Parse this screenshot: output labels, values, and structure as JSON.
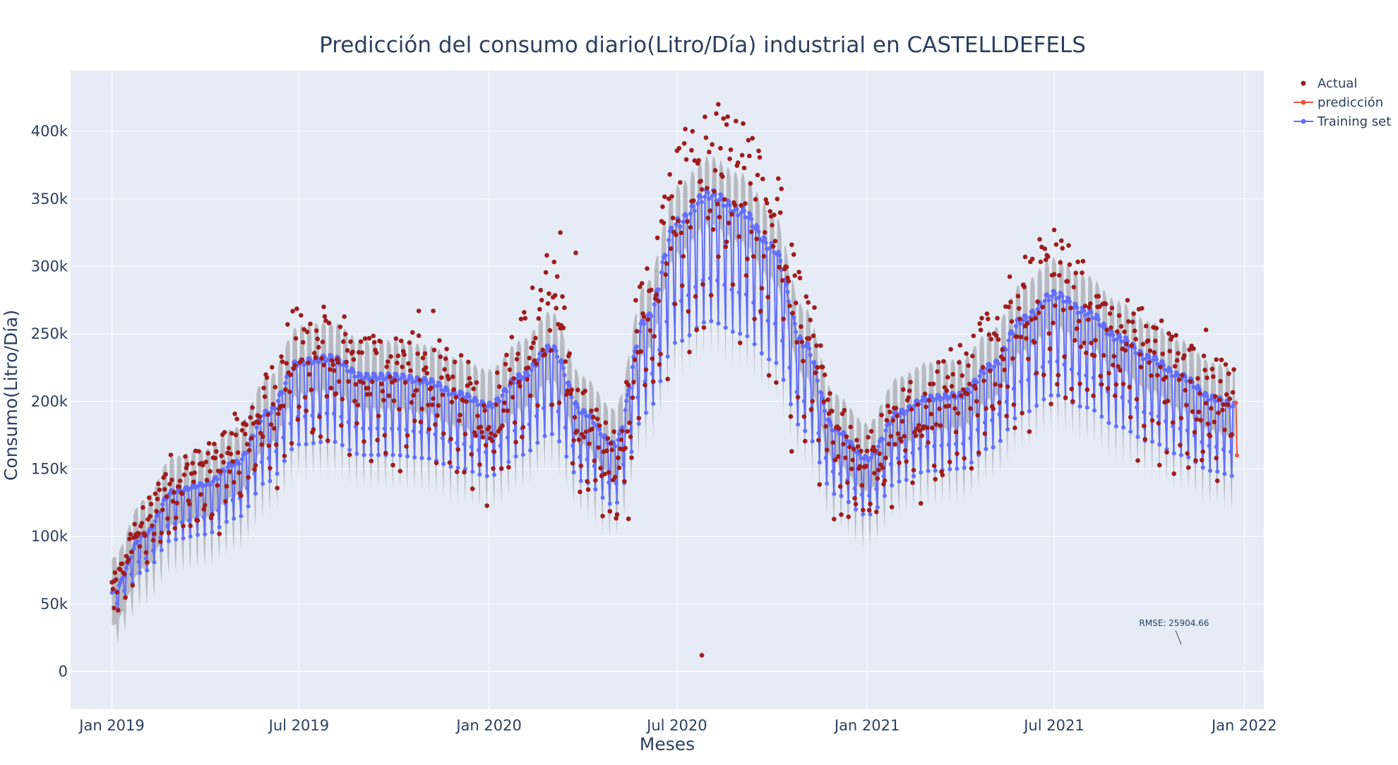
{
  "chart_data": {
    "type": "scatter",
    "title": "Predicción del consumo diario(Litro/Día) industrial en CASTELLDEFELS",
    "xlabel": "Meses",
    "ylabel": "Consumo(Litro/Día)",
    "x_range": [
      "2018-11-22",
      "2022-01-20"
    ],
    "ylim": [
      -28000,
      445000
    ],
    "x_ticks": [
      {
        "date": "2019-01-01",
        "label": "Jan 2019"
      },
      {
        "date": "2019-07-01",
        "label": "Jul 2019"
      },
      {
        "date": "2020-01-01",
        "label": "Jan 2020"
      },
      {
        "date": "2020-07-01",
        "label": "Jul 2020"
      },
      {
        "date": "2021-01-01",
        "label": "Jan 2021"
      },
      {
        "date": "2021-07-01",
        "label": "Jul 2021"
      },
      {
        "date": "2022-01-01",
        "label": "Jan 2022"
      }
    ],
    "y_ticks": [
      {
        "value": 0,
        "label": "0"
      },
      {
        "value": 50000,
        "label": "50k"
      },
      {
        "value": 100000,
        "label": "100k"
      },
      {
        "value": 150000,
        "label": "150k"
      },
      {
        "value": 200000,
        "label": "200k"
      },
      {
        "value": 250000,
        "label": "250k"
      },
      {
        "value": 300000,
        "label": "300k"
      },
      {
        "value": 350000,
        "label": "350k"
      },
      {
        "value": 400000,
        "label": "400k"
      }
    ],
    "grid": true,
    "legend_position": "top-right",
    "colors": {
      "plot_bg": "#e5ecf6",
      "grid": "#ffffff",
      "actual": "#a01c1c",
      "prediction": "#ef553b",
      "training": "#636efa",
      "band": "#7f7f7f"
    },
    "series": [
      {
        "name": "Actual",
        "mode": "markers",
        "anchors": [
          [
            "2019-01-01",
            60000
          ],
          [
            "2019-02-01",
            105000
          ],
          [
            "2019-03-01",
            135000
          ],
          [
            "2019-04-01",
            140000
          ],
          [
            "2019-05-01",
            160000
          ],
          [
            "2019-06-01",
            190000
          ],
          [
            "2019-07-01",
            228000
          ],
          [
            "2019-08-01",
            222000
          ],
          [
            "2019-09-01",
            212000
          ],
          [
            "2019-10-01",
            215000
          ],
          [
            "2019-11-01",
            210000
          ],
          [
            "2019-12-01",
            195000
          ],
          [
            "2020-01-01",
            180000
          ],
          [
            "2020-02-01",
            225000
          ],
          [
            "2020-03-01",
            265000
          ],
          [
            "2020-04-01",
            175000
          ],
          [
            "2020-05-01",
            150000
          ],
          [
            "2020-06-01",
            255000
          ],
          [
            "2020-07-01",
            330000
          ],
          [
            "2020-08-01",
            350000
          ],
          [
            "2020-09-01",
            340000
          ],
          [
            "2020-10-01",
            320000
          ],
          [
            "2020-11-01",
            245000
          ],
          [
            "2020-12-01",
            170000
          ],
          [
            "2021-01-01",
            150000
          ],
          [
            "2021-02-01",
            180000
          ],
          [
            "2021-03-01",
            190000
          ],
          [
            "2021-04-01",
            205000
          ],
          [
            "2021-05-01",
            225000
          ],
          [
            "2021-06-01",
            260000
          ],
          [
            "2021-07-01",
            270000
          ],
          [
            "2021-08-01",
            255000
          ],
          [
            "2021-09-01",
            240000
          ],
          [
            "2021-10-01",
            225000
          ],
          [
            "2021-11-01",
            210000
          ],
          [
            "2021-12-01",
            195000
          ]
        ],
        "notable_points": [
          [
            "2020-08-10",
            420000
          ],
          [
            "2020-08-18",
            405000
          ],
          [
            "2020-07-15",
            386000
          ],
          [
            "2020-03-10",
            325000
          ],
          [
            "2021-07-01",
            327000
          ],
          [
            "2021-06-03",
            307000
          ],
          [
            "2019-07-25",
            270000
          ],
          [
            "2020-07-25",
            12000
          ],
          [
            "2020-05-15",
            113000
          ],
          [
            "2020-10-20",
            163000
          ],
          [
            "2019-01-03",
            47000
          ],
          [
            "2021-12-05",
            231000
          ],
          [
            "2019-10-25",
            267000
          ],
          [
            "2019-11-08",
            267000
          ],
          [
            "2020-03-25",
            310000
          ],
          [
            "2021-11-25",
            253000
          ]
        ]
      },
      {
        "name": "predicción",
        "mode": "lines+markers",
        "points": [
          [
            "2021-12-24",
            199000
          ],
          [
            "2021-12-25",
            160000
          ]
        ]
      },
      {
        "name": "Training set",
        "mode": "lines+markers",
        "anchors": [
          [
            "2019-01-01",
            55000
          ],
          [
            "2019-02-01",
            95000
          ],
          [
            "2019-03-01",
            125000
          ],
          [
            "2019-04-01",
            130000
          ],
          [
            "2019-05-01",
            145000
          ],
          [
            "2019-06-01",
            180000
          ],
          [
            "2019-07-01",
            215000
          ],
          [
            "2019-08-01",
            218000
          ],
          [
            "2019-09-01",
            205000
          ],
          [
            "2019-10-01",
            205000
          ],
          [
            "2019-11-01",
            202000
          ],
          [
            "2019-12-01",
            193000
          ],
          [
            "2020-01-01",
            185000
          ],
          [
            "2020-02-01",
            205000
          ],
          [
            "2020-03-01",
            225000
          ],
          [
            "2020-04-01",
            180000
          ],
          [
            "2020-05-01",
            158000
          ],
          [
            "2020-06-01",
            245000
          ],
          [
            "2020-07-01",
            312000
          ],
          [
            "2020-08-01",
            332000
          ],
          [
            "2020-09-01",
            320000
          ],
          [
            "2020-10-01",
            295000
          ],
          [
            "2020-11-01",
            228000
          ],
          [
            "2020-12-01",
            168000
          ],
          [
            "2021-01-01",
            148000
          ],
          [
            "2021-02-01",
            180000
          ],
          [
            "2021-03-01",
            190000
          ],
          [
            "2021-04-01",
            192000
          ],
          [
            "2021-05-01",
            212000
          ],
          [
            "2021-06-01",
            245000
          ],
          [
            "2021-07-01",
            262000
          ],
          [
            "2021-08-01",
            250000
          ],
          [
            "2021-09-01",
            232000
          ],
          [
            "2021-10-01",
            218000
          ],
          [
            "2021-11-01",
            205000
          ],
          [
            "2021-12-01",
            190000
          ],
          [
            "2021-12-23",
            185000
          ]
        ],
        "weekly_amplitude": 30000,
        "uncertainty_band": 25000
      }
    ],
    "annotation": {
      "text": "RMSE: 25904.66",
      "date": "2021-11-01",
      "value": 20000
    }
  }
}
